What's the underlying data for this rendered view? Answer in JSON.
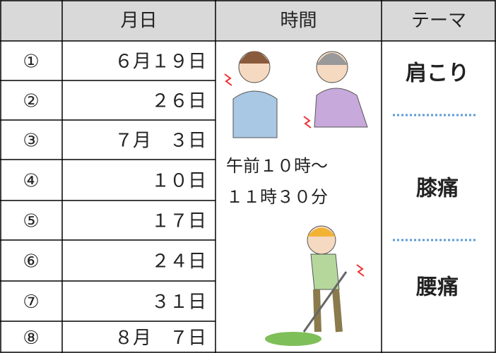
{
  "header": {
    "columns": [
      "月日",
      "時間",
      "テーマ"
    ]
  },
  "rows": [
    {
      "number": "①",
      "date": "６月１９日"
    },
    {
      "number": "②",
      "date": "２６日"
    },
    {
      "number": "③",
      "date": "７月　３日"
    },
    {
      "number": "④",
      "date": "１０日"
    },
    {
      "number": "⑤",
      "date": "１７日"
    },
    {
      "number": "⑥",
      "date": "２４日"
    },
    {
      "number": "⑦",
      "date": "３１日"
    },
    {
      "number": "⑧",
      "date": "８月　７日"
    }
  ],
  "time": [
    "午前１０時～",
    "１１時３０分"
  ],
  "themes": [
    "肩こり",
    "膝痛",
    "腰痛"
  ]
}
